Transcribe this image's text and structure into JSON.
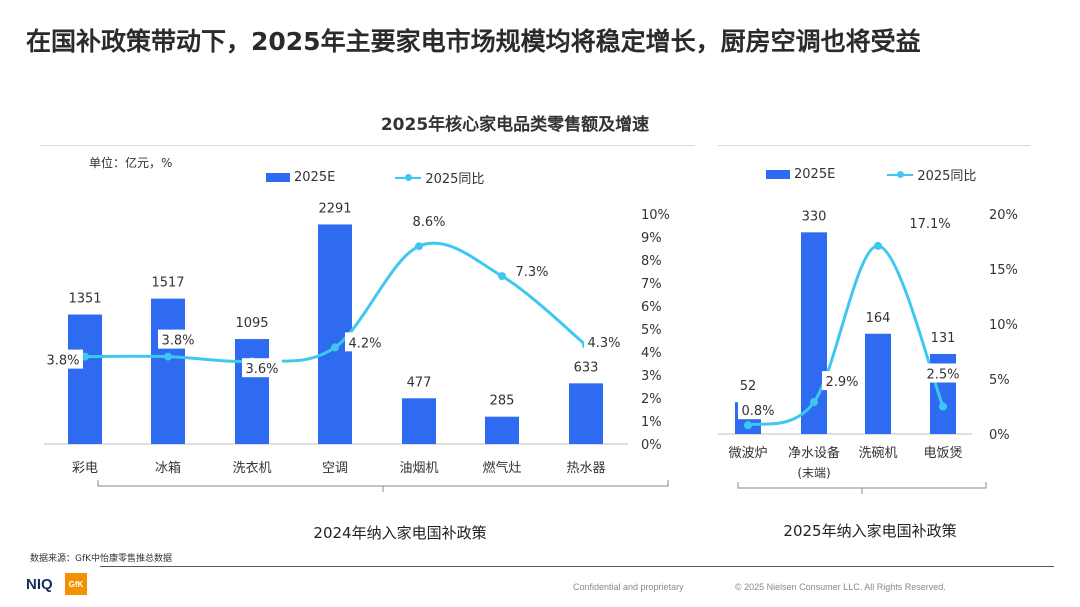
{
  "headline": "在国补政策带动下，2025年主要家电市场规模均将稳定增长，厨房空调也将受益",
  "colors": {
    "bar": "#2f6bf0",
    "line": "#3fc8ef",
    "text": "#333333",
    "axis": "#bfbfbf"
  },
  "chart_data": [
    {
      "type": "bar+line",
      "title": "2025年核心家电品类零售额及增速",
      "unit_label": "单位：亿元，%",
      "legend": {
        "bar": "2025E",
        "line": "2025同比"
      },
      "categories": [
        "彩电",
        "冰箱",
        "洗衣机",
        "空调",
        "油烟机",
        "燃气灶",
        "热水器"
      ],
      "series": [
        {
          "name": "2025E",
          "kind": "bar",
          "values": [
            1351,
            1517,
            1095,
            2291,
            477,
            285,
            633
          ],
          "labels": [
            "1351",
            "1517",
            "1095",
            "2291",
            "477",
            "285",
            "633"
          ]
        },
        {
          "name": "2025同比",
          "kind": "line",
          "values": [
            3.8,
            3.8,
            3.6,
            4.2,
            8.6,
            7.3,
            4.3
          ],
          "labels": [
            "3.8%",
            "3.8%",
            "3.6%",
            "4.2%",
            "8.6%",
            "7.3%",
            "4.3%"
          ]
        }
      ],
      "bar_axis": {
        "min": 0,
        "max": 2400
      },
      "y2_axis": {
        "min": 0,
        "max": 10,
        "ticks": [
          "0%",
          "1%",
          "2%",
          "3%",
          "4%",
          "5%",
          "6%",
          "7%",
          "8%",
          "9%",
          "10%"
        ]
      },
      "group_label": "2024年纳入家电国补政策"
    },
    {
      "type": "bar+line",
      "legend": {
        "bar": "2025E",
        "line": "2025同比"
      },
      "categories": [
        "微波炉",
        "净水设备",
        "洗碗机",
        "电饭煲"
      ],
      "category_sublabels": [
        "",
        "(末端)",
        "",
        ""
      ],
      "series": [
        {
          "name": "2025E",
          "kind": "bar",
          "values": [
            52,
            330,
            164,
            131
          ],
          "labels": [
            "52",
            "330",
            "164",
            "131"
          ]
        },
        {
          "name": "2025同比",
          "kind": "line",
          "values": [
            0.8,
            2.9,
            17.1,
            2.5
          ],
          "labels": [
            "0.8%",
            "2.9%",
            "17.1%",
            "2.5%"
          ]
        }
      ],
      "bar_axis": {
        "min": 0,
        "max": 360
      },
      "y2_axis": {
        "min": 0,
        "max": 20,
        "ticks": [
          "0%",
          "5%",
          "10%",
          "15%",
          "20%"
        ]
      },
      "group_label": "2025年纳入家电国补政策"
    }
  ],
  "source_note": "数据来源：GfK中怡康零售推总数据",
  "footer": {
    "brand_niq": "NIQ",
    "brand_gfk": "GfK",
    "confidential": "Confidential and proprietary",
    "copyright": "© 2025 Nielsen Consumer LLC. All Rights Reserved."
  }
}
